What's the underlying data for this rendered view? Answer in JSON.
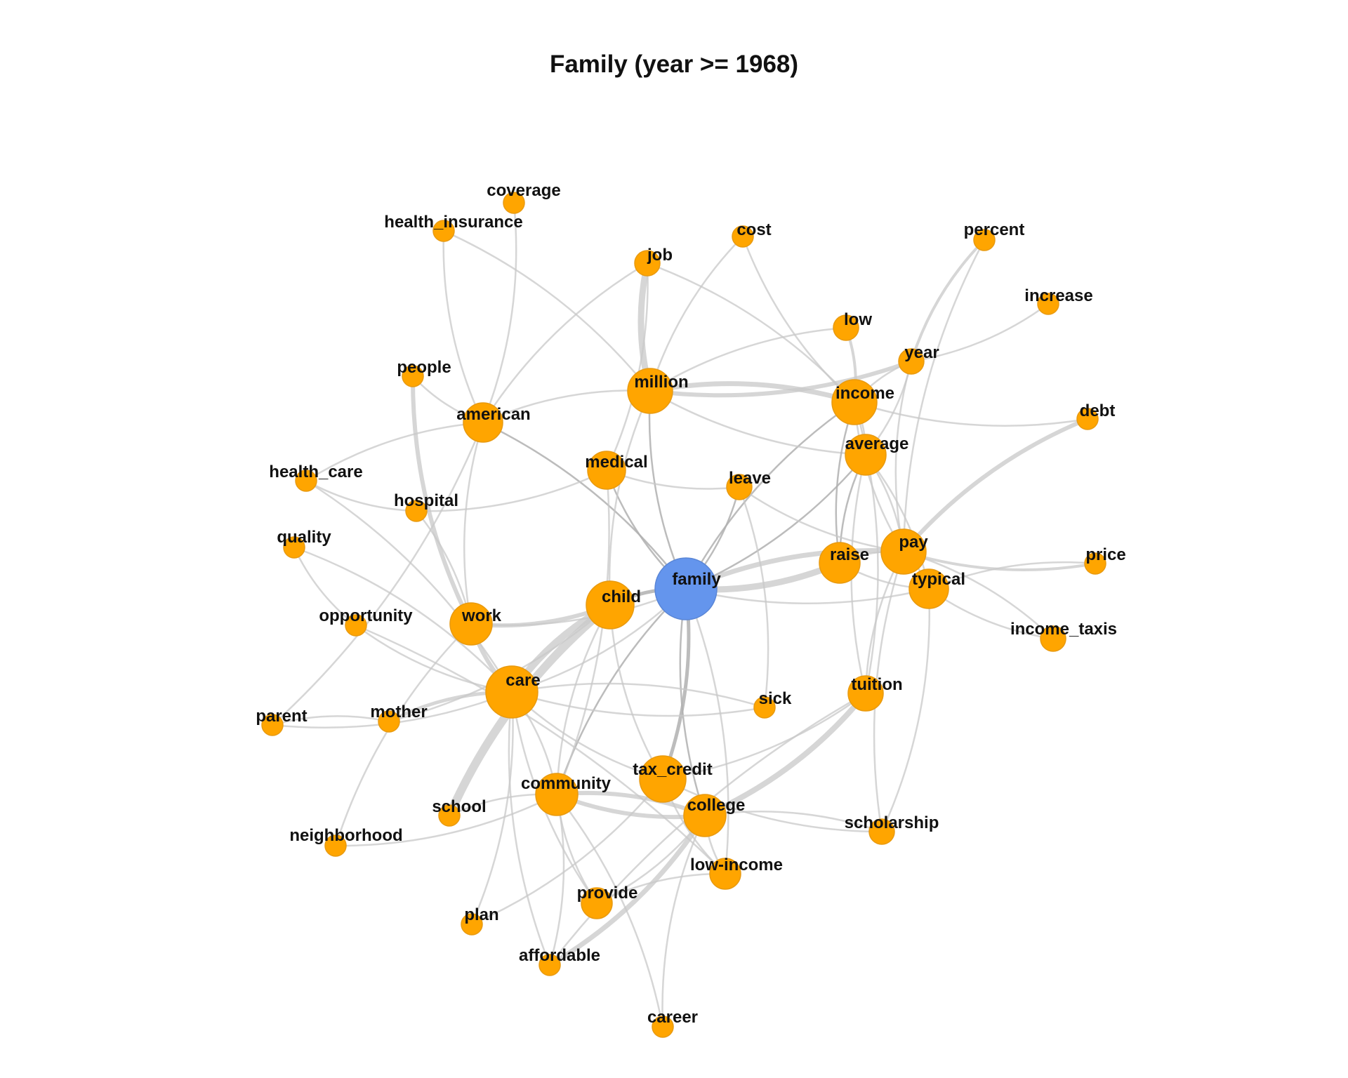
{
  "title": "Family (year >= 1968)",
  "colors": {
    "hub": "#6495ED",
    "hub_stroke": "#5A86D6",
    "node": "#FFA500",
    "node_stroke": "#E89A10",
    "edge": "#C8C8C8",
    "edge_strong": "#B0B0B0",
    "label": "#111111"
  },
  "network": {
    "hub": "family",
    "nodes": [
      {
        "id": "family",
        "label": "family",
        "hub": true
      },
      {
        "id": "coverage",
        "label": "coverage"
      },
      {
        "id": "health_insurance",
        "label": "health_insurance"
      },
      {
        "id": "cost",
        "label": "cost"
      },
      {
        "id": "percent",
        "label": "percent"
      },
      {
        "id": "job",
        "label": "job"
      },
      {
        "id": "increase",
        "label": "increase"
      },
      {
        "id": "low",
        "label": "low"
      },
      {
        "id": "year",
        "label": "year"
      },
      {
        "id": "people",
        "label": "people"
      },
      {
        "id": "million",
        "label": "million"
      },
      {
        "id": "income",
        "label": "income"
      },
      {
        "id": "american",
        "label": "american"
      },
      {
        "id": "debt",
        "label": "debt"
      },
      {
        "id": "average",
        "label": "average"
      },
      {
        "id": "medical",
        "label": "medical"
      },
      {
        "id": "health_care",
        "label": "health_care"
      },
      {
        "id": "leave",
        "label": "leave"
      },
      {
        "id": "hospital",
        "label": "hospital"
      },
      {
        "id": "quality",
        "label": "quality"
      },
      {
        "id": "pay",
        "label": "pay"
      },
      {
        "id": "price",
        "label": "price"
      },
      {
        "id": "raise",
        "label": "raise"
      },
      {
        "id": "typical",
        "label": "typical"
      },
      {
        "id": "child",
        "label": "child"
      },
      {
        "id": "opportunity",
        "label": "opportunity"
      },
      {
        "id": "work",
        "label": "work"
      },
      {
        "id": "income_taxis",
        "label": "income_taxis"
      },
      {
        "id": "care",
        "label": "care"
      },
      {
        "id": "tuition",
        "label": "tuition"
      },
      {
        "id": "sick",
        "label": "sick"
      },
      {
        "id": "parent",
        "label": "parent"
      },
      {
        "id": "mother",
        "label": "mother"
      },
      {
        "id": "tax_credit",
        "label": "tax_credit"
      },
      {
        "id": "community",
        "label": "community"
      },
      {
        "id": "college",
        "label": "college"
      },
      {
        "id": "school",
        "label": "school"
      },
      {
        "id": "scholarship",
        "label": "scholarship"
      },
      {
        "id": "neighborhood",
        "label": "neighborhood"
      },
      {
        "id": "low-income",
        "label": "low-income"
      },
      {
        "id": "provide",
        "label": "provide"
      },
      {
        "id": "plan",
        "label": "plan"
      },
      {
        "id": "affordable",
        "label": "affordable"
      },
      {
        "id": "career",
        "label": "career"
      }
    ],
    "edges": [
      [
        "family",
        "child"
      ],
      [
        "family",
        "care"
      ],
      [
        "family",
        "raise"
      ],
      [
        "family",
        "pay"
      ],
      [
        "family",
        "typical"
      ],
      [
        "family",
        "income"
      ],
      [
        "family",
        "average"
      ],
      [
        "family",
        "million"
      ],
      [
        "family",
        "american"
      ],
      [
        "family",
        "medical"
      ],
      [
        "family",
        "leave"
      ],
      [
        "family",
        "tax_credit"
      ],
      [
        "family",
        "college"
      ],
      [
        "family",
        "low-income"
      ],
      [
        "family",
        "community"
      ],
      [
        "family",
        "work"
      ],
      [
        "child",
        "care"
      ],
      [
        "child",
        "work"
      ],
      [
        "child",
        "school"
      ],
      [
        "child",
        "million"
      ],
      [
        "child",
        "tax_credit"
      ],
      [
        "child",
        "mother"
      ],
      [
        "child",
        "community"
      ],
      [
        "care",
        "work"
      ],
      [
        "care",
        "mother"
      ],
      [
        "care",
        "parent"
      ],
      [
        "care",
        "quality"
      ],
      [
        "care",
        "community"
      ],
      [
        "care",
        "tax_credit"
      ],
      [
        "care",
        "sick"
      ],
      [
        "care",
        "provide"
      ],
      [
        "care",
        "plan"
      ],
      [
        "care",
        "affordable"
      ],
      [
        "care",
        "opportunity"
      ],
      [
        "care",
        "health_care"
      ],
      [
        "work",
        "people"
      ],
      [
        "work",
        "hospital"
      ],
      [
        "work",
        "american"
      ],
      [
        "work",
        "neighborhood"
      ],
      [
        "parent",
        "mother"
      ],
      [
        "parent",
        "american"
      ],
      [
        "million",
        "job"
      ],
      [
        "million",
        "american"
      ],
      [
        "million",
        "income"
      ],
      [
        "million",
        "year"
      ],
      [
        "million",
        "cost"
      ],
      [
        "million",
        "health_insurance"
      ],
      [
        "million",
        "low"
      ],
      [
        "million",
        "average"
      ],
      [
        "american",
        "job"
      ],
      [
        "american",
        "coverage"
      ],
      [
        "american",
        "health_insurance"
      ],
      [
        "american",
        "health_care"
      ],
      [
        "american",
        "people"
      ],
      [
        "income",
        "low"
      ],
      [
        "income",
        "year"
      ],
      [
        "income",
        "debt"
      ],
      [
        "income",
        "average"
      ],
      [
        "income",
        "raise"
      ],
      [
        "income",
        "cost"
      ],
      [
        "income",
        "pay"
      ],
      [
        "income",
        "tuition"
      ],
      [
        "income",
        "job"
      ],
      [
        "year",
        "percent"
      ],
      [
        "year",
        "increase"
      ],
      [
        "year",
        "average"
      ],
      [
        "year",
        "pay"
      ],
      [
        "average",
        "pay"
      ],
      [
        "average",
        "raise"
      ],
      [
        "average",
        "typical"
      ],
      [
        "average",
        "tuition"
      ],
      [
        "pay",
        "debt"
      ],
      [
        "pay",
        "price"
      ],
      [
        "pay",
        "typical"
      ],
      [
        "pay",
        "tuition"
      ],
      [
        "pay",
        "income_taxis"
      ],
      [
        "pay",
        "raise"
      ],
      [
        "pay",
        "percent"
      ],
      [
        "pay",
        "scholarship"
      ],
      [
        "typical",
        "price"
      ],
      [
        "typical",
        "income_taxis"
      ],
      [
        "typical",
        "scholarship"
      ],
      [
        "raise",
        "typical"
      ],
      [
        "medical",
        "hospital"
      ],
      [
        "medical",
        "leave"
      ],
      [
        "medical",
        "community"
      ],
      [
        "medical",
        "job"
      ],
      [
        "leave",
        "sick"
      ],
      [
        "leave",
        "pay"
      ],
      [
        "tuition",
        "college"
      ],
      [
        "tuition",
        "affordable"
      ],
      [
        "tuition",
        "tax_credit"
      ],
      [
        "college",
        "community"
      ],
      [
        "college",
        "scholarship"
      ],
      [
        "college",
        "low-income"
      ],
      [
        "college",
        "affordable"
      ],
      [
        "college",
        "career"
      ],
      [
        "college",
        "provide"
      ],
      [
        "community",
        "school"
      ],
      [
        "community",
        "neighborhood"
      ],
      [
        "community",
        "provide"
      ],
      [
        "community",
        "career"
      ],
      [
        "community",
        "college"
      ],
      [
        "community",
        "affordable"
      ],
      [
        "tax_credit",
        "low-income"
      ],
      [
        "tax_credit",
        "plan"
      ],
      [
        "tax_credit",
        "scholarship"
      ],
      [
        "hospital",
        "health_care"
      ],
      [
        "quality",
        "opportunity"
      ],
      [
        "opportunity",
        "low-income"
      ],
      [
        "low-income",
        "provide"
      ],
      [
        "sick",
        "care"
      ]
    ]
  }
}
